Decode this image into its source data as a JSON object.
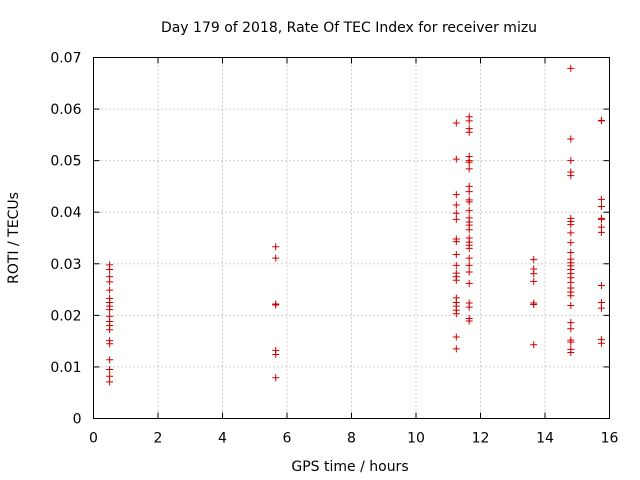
{
  "chart_data": {
    "type": "scatter",
    "title": "Day 179 of 2018, Rate Of TEC Index for receiver mizu",
    "xlabel": "GPS time / hours",
    "ylabel": "ROTI / TECUs",
    "xlim": [
      0,
      16
    ],
    "ylim": [
      0,
      0.07
    ],
    "xticks": [
      0,
      2,
      4,
      6,
      8,
      10,
      12,
      14,
      16
    ],
    "xtick_labels": [
      "0",
      "2",
      "4",
      "6",
      "8",
      "10",
      "12",
      "14",
      "16"
    ],
    "yticks": [
      0,
      0.01,
      0.02,
      0.03,
      0.04,
      0.05,
      0.06,
      0.07
    ],
    "ytick_labels": [
      "0",
      "0.01",
      "0.02",
      "0.03",
      "0.04",
      "0.05",
      "0.06",
      "0.07"
    ],
    "grid": true,
    "marker": "+",
    "color": "#cc0000",
    "series": [
      {
        "name": "ROTI",
        "points": [
          [
            0.5,
            0.0298
          ],
          [
            0.5,
            0.0289
          ],
          [
            0.5,
            0.0275
          ],
          [
            0.5,
            0.0265
          ],
          [
            0.5,
            0.0249
          ],
          [
            0.5,
            0.0233
          ],
          [
            0.5,
            0.0225
          ],
          [
            0.5,
            0.0218
          ],
          [
            0.5,
            0.0211
          ],
          [
            0.5,
            0.0198
          ],
          [
            0.5,
            0.0188
          ],
          [
            0.5,
            0.018
          ],
          [
            0.5,
            0.0172
          ],
          [
            0.5,
            0.0151
          ],
          [
            0.5,
            0.0145
          ],
          [
            0.5,
            0.0114
          ],
          [
            0.5,
            0.0095
          ],
          [
            0.5,
            0.0082
          ],
          [
            0.5,
            0.0071
          ],
          [
            5.65,
            0.0333
          ],
          [
            5.65,
            0.0311
          ],
          [
            5.65,
            0.0222
          ],
          [
            5.65,
            0.022
          ],
          [
            5.65,
            0.0132
          ],
          [
            5.65,
            0.0124
          ],
          [
            5.65,
            0.0079
          ],
          [
            11.25,
            0.0573
          ],
          [
            11.25,
            0.0503
          ],
          [
            11.25,
            0.0434
          ],
          [
            11.25,
            0.0414
          ],
          [
            11.25,
            0.0398
          ],
          [
            11.25,
            0.0386
          ],
          [
            11.25,
            0.0348
          ],
          [
            11.25,
            0.0343
          ],
          [
            11.25,
            0.0318
          ],
          [
            11.25,
            0.0297
          ],
          [
            11.25,
            0.0282
          ],
          [
            11.25,
            0.0275
          ],
          [
            11.25,
            0.0268
          ],
          [
            11.25,
            0.0234
          ],
          [
            11.25,
            0.0225
          ],
          [
            11.25,
            0.0218
          ],
          [
            11.25,
            0.021
          ],
          [
            11.25,
            0.0203
          ],
          [
            11.25,
            0.0158
          ],
          [
            11.25,
            0.0135
          ],
          [
            11.65,
            0.0585
          ],
          [
            11.65,
            0.0577
          ],
          [
            11.65,
            0.0562
          ],
          [
            11.65,
            0.0555
          ],
          [
            11.65,
            0.0508
          ],
          [
            11.65,
            0.05
          ],
          [
            11.65,
            0.0497
          ],
          [
            11.65,
            0.0484
          ],
          [
            11.65,
            0.045
          ],
          [
            11.65,
            0.044
          ],
          [
            11.65,
            0.0424
          ],
          [
            11.65,
            0.042
          ],
          [
            11.65,
            0.0403
          ],
          [
            11.65,
            0.0389
          ],
          [
            11.65,
            0.0381
          ],
          [
            11.65,
            0.0375
          ],
          [
            11.65,
            0.0366
          ],
          [
            11.65,
            0.035
          ],
          [
            11.65,
            0.0342
          ],
          [
            11.65,
            0.0336
          ],
          [
            11.65,
            0.033
          ],
          [
            11.65,
            0.0311
          ],
          [
            11.65,
            0.0297
          ],
          [
            11.65,
            0.0284
          ],
          [
            11.65,
            0.0262
          ],
          [
            11.65,
            0.0224
          ],
          [
            11.65,
            0.0216
          ],
          [
            11.65,
            0.0194
          ],
          [
            11.65,
            0.0189
          ],
          [
            13.65,
            0.0308
          ],
          [
            13.65,
            0.029
          ],
          [
            13.65,
            0.0281
          ],
          [
            13.65,
            0.0266
          ],
          [
            13.65,
            0.0224
          ],
          [
            13.65,
            0.0221
          ],
          [
            13.65,
            0.0143
          ],
          [
            14.8,
            0.0679
          ],
          [
            14.8,
            0.0542
          ],
          [
            14.8,
            0.05
          ],
          [
            14.8,
            0.0478
          ],
          [
            14.8,
            0.0471
          ],
          [
            14.8,
            0.0388
          ],
          [
            14.8,
            0.0382
          ],
          [
            14.8,
            0.0376
          ],
          [
            14.8,
            0.036
          ],
          [
            14.8,
            0.0341
          ],
          [
            14.8,
            0.0322
          ],
          [
            14.8,
            0.0309
          ],
          [
            14.8,
            0.0302
          ],
          [
            14.8,
            0.0296
          ],
          [
            14.8,
            0.0289
          ],
          [
            14.8,
            0.0281
          ],
          [
            14.8,
            0.0273
          ],
          [
            14.8,
            0.0264
          ],
          [
            14.8,
            0.0253
          ],
          [
            14.8,
            0.0245
          ],
          [
            14.8,
            0.0238
          ],
          [
            14.8,
            0.0219
          ],
          [
            14.8,
            0.0186
          ],
          [
            14.8,
            0.0174
          ],
          [
            14.8,
            0.0152
          ],
          [
            14.8,
            0.0148
          ],
          [
            14.8,
            0.0134
          ],
          [
            14.8,
            0.0128
          ],
          [
            15.75,
            0.0578
          ],
          [
            15.75,
            0.0577
          ],
          [
            15.75,
            0.0425
          ],
          [
            15.75,
            0.0411
          ],
          [
            15.75,
            0.0388
          ],
          [
            15.75,
            0.0386
          ],
          [
            15.75,
            0.0371
          ],
          [
            15.75,
            0.0361
          ],
          [
            15.75,
            0.0258
          ],
          [
            15.75,
            0.0225
          ],
          [
            15.75,
            0.0214
          ],
          [
            15.75,
            0.0153
          ],
          [
            15.75,
            0.0146
          ]
        ]
      }
    ]
  }
}
